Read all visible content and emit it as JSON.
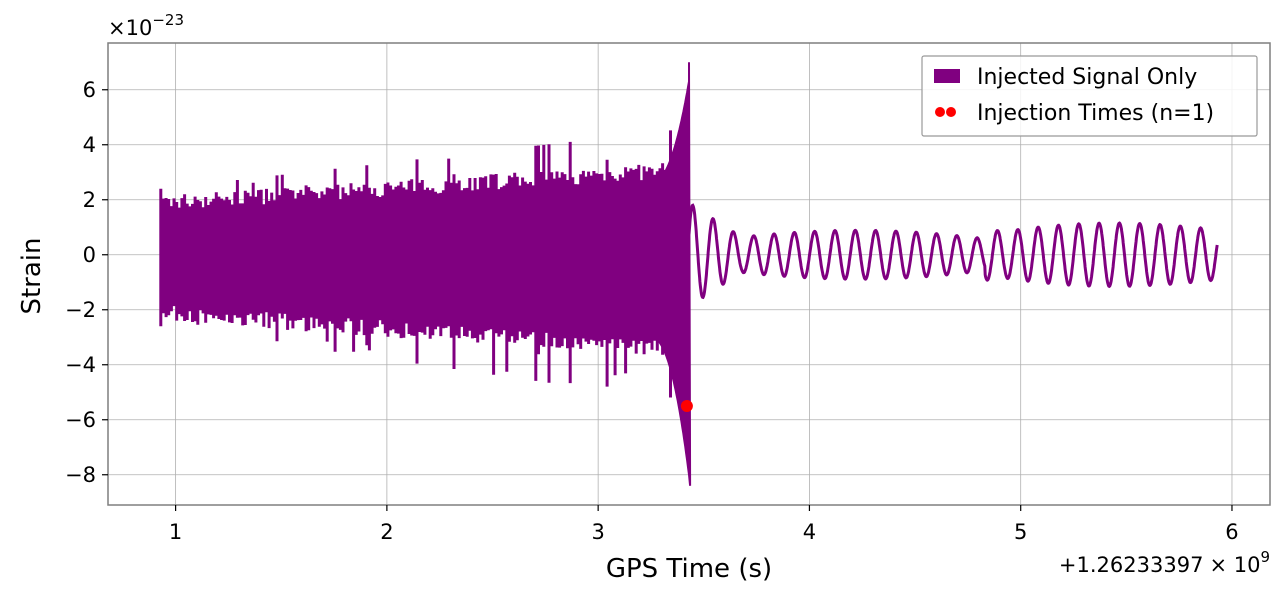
{
  "chart_data": {
    "type": "line",
    "xlabel": "GPS Time (s)",
    "ylabel": "Strain",
    "x_offset_label": "+1.26233397",
    "x_offset_exp_base": "× 10",
    "x_offset_exp": "9",
    "y_scale_base": "×10",
    "y_scale_exp": "−23",
    "xlim": [
      0.68,
      6.18
    ],
    "ylim": [
      -9.1,
      7.7
    ],
    "x_ticks": [
      1,
      2,
      3,
      4,
      5,
      6
    ],
    "x_tick_labels": [
      "1",
      "2",
      "3",
      "4",
      "5",
      "6"
    ],
    "y_ticks": [
      -8,
      -6,
      -4,
      -2,
      0,
      2,
      4,
      6
    ],
    "y_tick_labels": [
      "−8",
      "−6",
      "−4",
      "−2",
      "0",
      "2",
      "4",
      "6"
    ],
    "grid": true,
    "legend_position": "top-right",
    "series": [
      {
        "name": "Injected Signal Only",
        "color": "#800080",
        "x_start": 0.93,
        "merger_time": 3.43,
        "x_end": 5.93,
        "peak_max": 7.0,
        "peak_min": -8.4,
        "early_amplitude_max": 2.4,
        "early_amplitude_min": -2.6,
        "ringdown_amplitude": 1.4
      },
      {
        "name": "Injection Times (n=1)",
        "color": "#ff0000",
        "type": "scatter",
        "points": [
          {
            "x": 3.42,
            "y": -5.5
          }
        ]
      }
    ]
  }
}
